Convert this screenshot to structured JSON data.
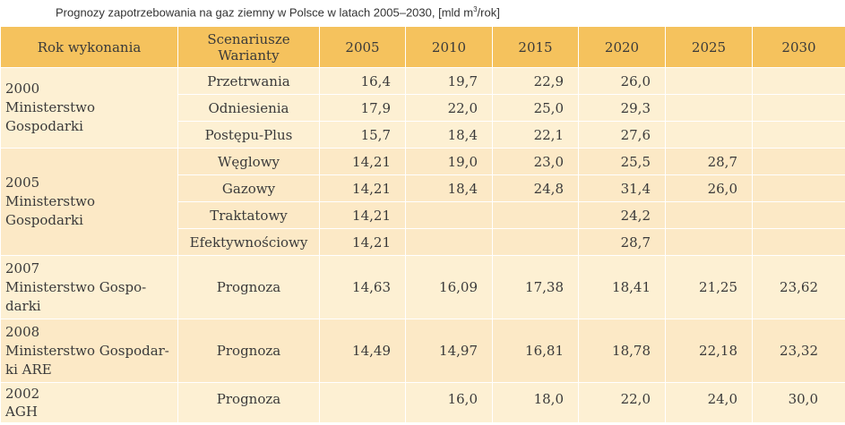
{
  "caption": {
    "text_before": "Prognozy zapotrzebowania na gaz ziemny w Polsce w latach 2005–2030, [mld m",
    "superscript": "3",
    "text_after": "/rok]"
  },
  "header": {
    "rok": "Rok wykonania",
    "scenariusze_line1": "Scenariusze",
    "scenariusze_line2": "Warianty",
    "years": [
      "2005",
      "2010",
      "2015",
      "2020",
      "2025",
      "2030"
    ]
  },
  "groups": [
    {
      "org": "2000\nMinisterstwo\nGospodarki",
      "rows": [
        {
          "scenario": "Przetrwania",
          "values": [
            "16,4",
            "19,7",
            "22,9",
            "26,0",
            "",
            ""
          ]
        },
        {
          "scenario": "Odniesienia",
          "values": [
            "17,9",
            "22,0",
            "25,0",
            "29,3",
            "",
            ""
          ]
        },
        {
          "scenario": "Postępu-Plus",
          "values": [
            "15,7",
            "18,4",
            "22,1",
            "27,6",
            "",
            ""
          ]
        }
      ]
    },
    {
      "org": "2005\nMinisterstwo\nGospodarki",
      "rows": [
        {
          "scenario": "Węglowy",
          "values": [
            "14,21",
            "19,0",
            "23,0",
            "25,5",
            "28,7",
            ""
          ]
        },
        {
          "scenario": "Gazowy",
          "values": [
            "14,21",
            "18,4",
            "24,8",
            "31,4",
            "26,0",
            ""
          ]
        },
        {
          "scenario": "Traktatowy",
          "values": [
            "14,21",
            "",
            "",
            "24,2",
            "",
            ""
          ]
        },
        {
          "scenario": "Efektywnościowy",
          "values": [
            "14,21",
            "",
            "",
            "28,7",
            "",
            ""
          ]
        }
      ]
    },
    {
      "org": "2007\nMinisterstwo Gospo-\ndarki",
      "rows": [
        {
          "scenario": "Prognoza",
          "values": [
            "14,63",
            "16,09",
            "17,38",
            "18,41",
            "21,25",
            "23,62"
          ]
        }
      ]
    },
    {
      "org": "2008\nMinisterstwo Gospodar-\nki ARE",
      "rows": [
        {
          "scenario": "Prognoza",
          "values": [
            "14,49",
            "14,97",
            "16,81",
            "18,78",
            "22,18",
            "23,32"
          ]
        }
      ]
    },
    {
      "org": "2002\nAGH",
      "rows": [
        {
          "scenario": "Prognoza",
          "values": [
            "",
            "16,0",
            "18,0",
            "22,0",
            "24,0",
            "30,0"
          ]
        }
      ]
    }
  ]
}
